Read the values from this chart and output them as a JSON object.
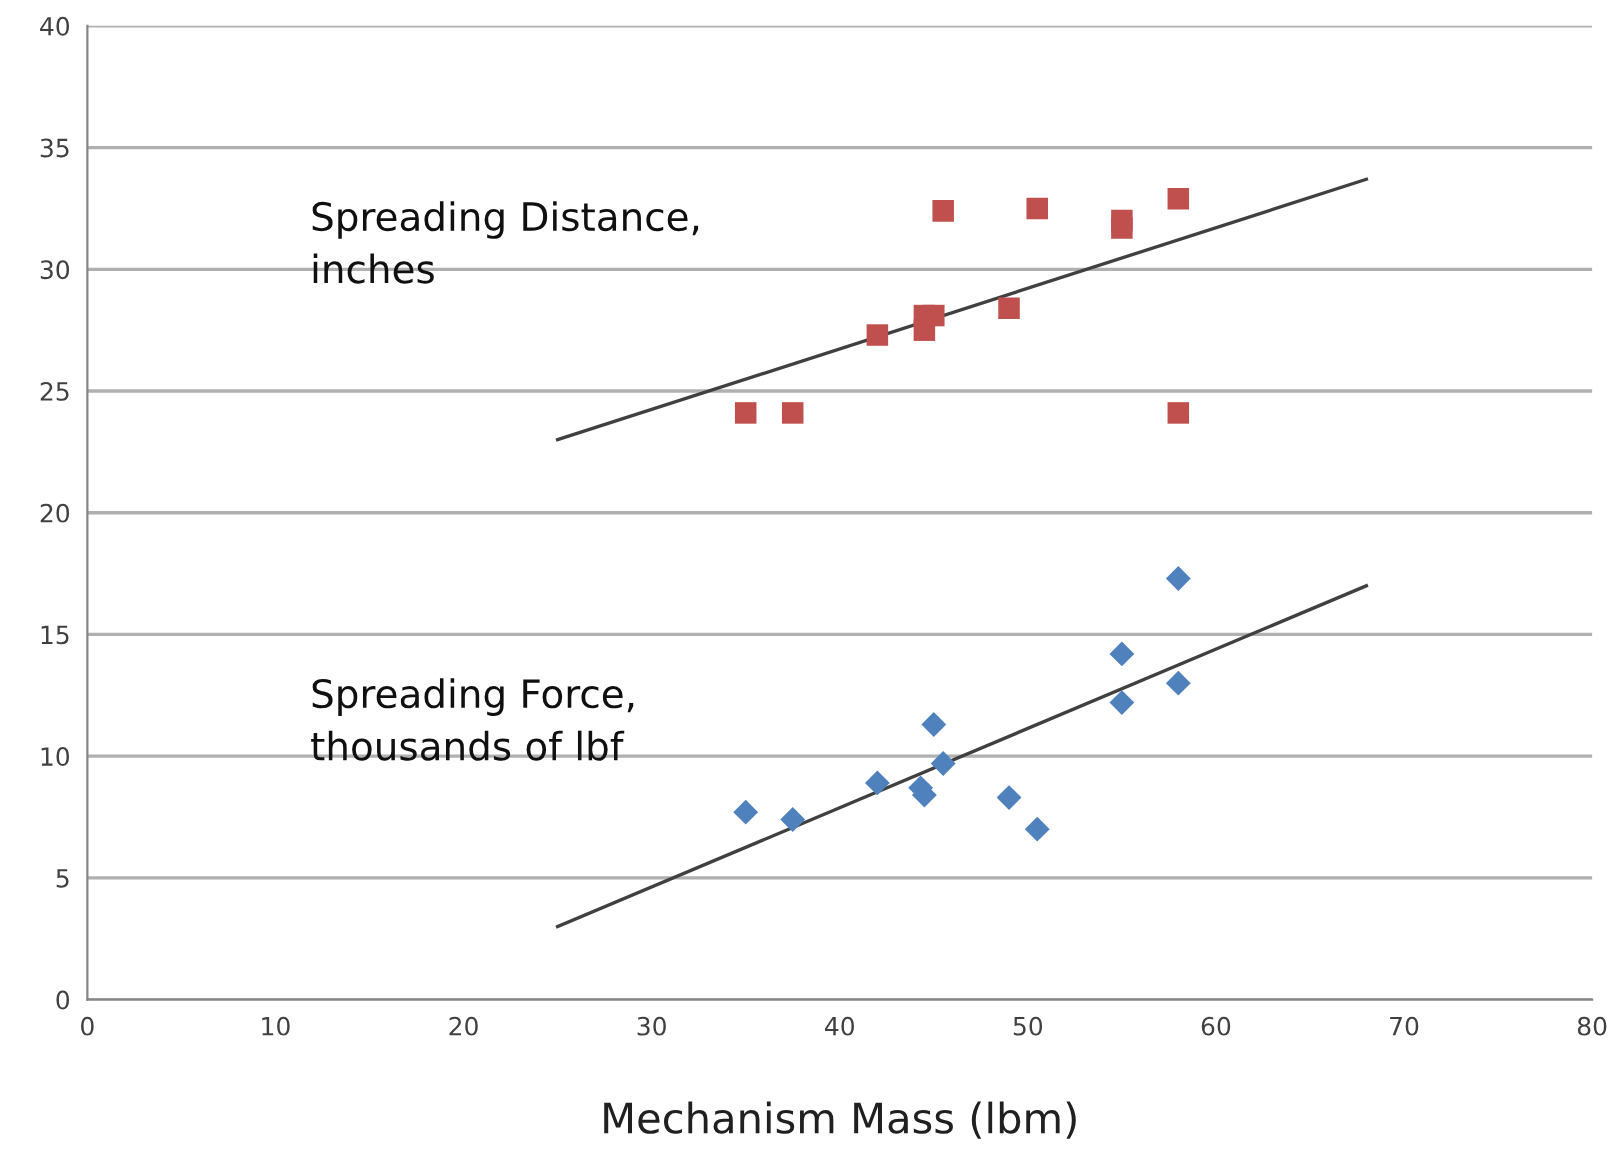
{
  "chart_data": {
    "type": "scatter",
    "xlabel": "Mechanism Mass (lbm)",
    "xlim": [
      0,
      80
    ],
    "xticks": [
      0,
      10,
      20,
      30,
      40,
      50,
      60,
      70,
      80
    ],
    "ylim": [
      0,
      40
    ],
    "yticks": [
      0,
      5,
      10,
      15,
      20,
      25,
      30,
      35,
      40
    ],
    "grid": "y",
    "legend": false,
    "annotations": [
      "Spreading Distance,\ninches",
      "Spreading Force,\nthousands of lbf"
    ],
    "series": [
      {
        "marker": "square",
        "color": "#c0504d",
        "x": [
          35,
          37.5,
          42,
          44.5,
          45,
          44.5,
          45.5,
          50.5,
          55,
          55,
          58,
          58,
          49
        ],
        "values": [
          24.1,
          24.1,
          27.3,
          28.1,
          28.1,
          27.5,
          32.4,
          32.5,
          32,
          31.7,
          32.9,
          24.1,
          28.4
        ]
      },
      {
        "marker": "diamond",
        "color": "#4f81bd",
        "x": [
          35,
          37.5,
          42,
          44.3,
          44.5,
          45,
          45.5,
          49,
          50.5,
          55,
          55,
          58,
          58
        ],
        "values": [
          7.7,
          7.4,
          8.9,
          8.7,
          8.4,
          11.3,
          9.7,
          8.3,
          7,
          14.2,
          12.2,
          17.3,
          13
        ]
      },
      {
        "type": "line",
        "color": "#404040",
        "x": [
          25,
          68
        ],
        "values": [
          23,
          33.7
        ]
      },
      {
        "type": "line",
        "color": "#404040",
        "x": [
          25,
          68
        ],
        "values": [
          3,
          17
        ]
      }
    ]
  }
}
